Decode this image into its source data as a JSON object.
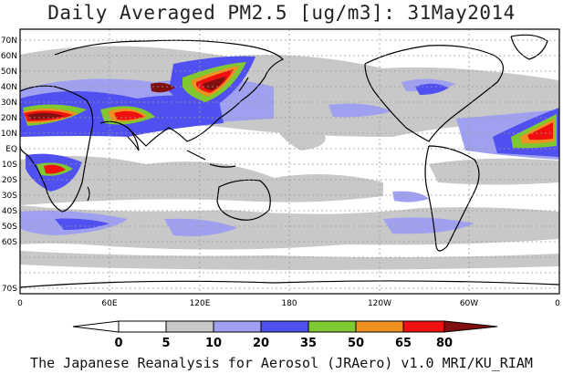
{
  "title": "Daily Averaged PM2.5 [ug/m3]: 31May2014",
  "footer": "The Japanese Reanalysis for Aerosol (JRAero) v1.0 MRI/KU_RIAM",
  "map": {
    "lon_labels": [
      "0",
      "60E",
      "120E",
      "180",
      "120W",
      "60W",
      "0"
    ],
    "lat_labels": [
      "70N",
      "60N",
      "50N",
      "40N",
      "30N",
      "20N",
      "10N",
      "EQ",
      "10S",
      "20S",
      "30S",
      "40S",
      "50S",
      "60S",
      "70S"
    ]
  },
  "legend": {
    "labels": [
      "0",
      "5",
      "10",
      "20",
      "35",
      "50",
      "65",
      "80"
    ],
    "colors": [
      "#ffffff",
      "#c8c8c8",
      "#a0a0f0",
      "#5050f0",
      "#80c830",
      "#f09020",
      "#f01010",
      "#801010"
    ]
  },
  "colors": {
    "land_outline": "#000000",
    "grid": "#9a9a9a"
  }
}
